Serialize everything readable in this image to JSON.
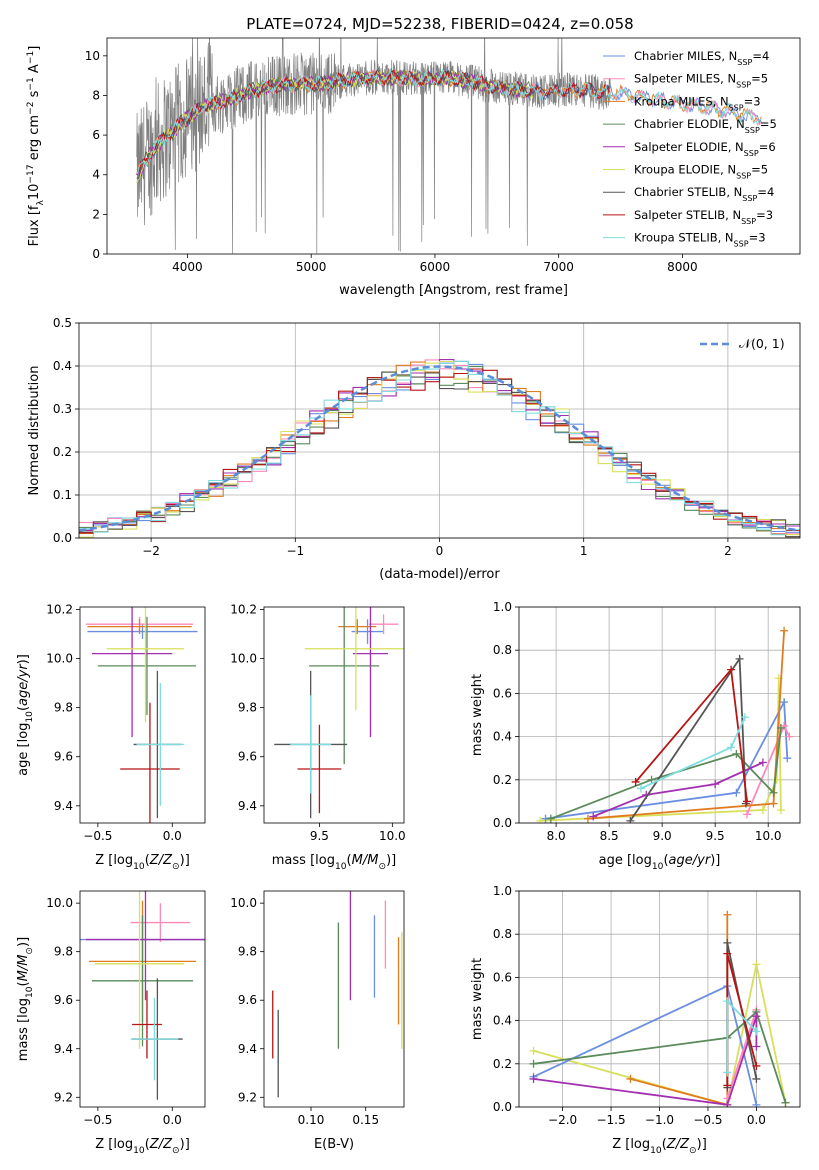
{
  "figure": {
    "title": "PLATE=0724, MJD=52238, FIBERID=0424, z=0.058"
  },
  "colors": {
    "Chabrier MILES": "#6a8fe0",
    "Salpeter MILES": "#ff88bb",
    "Kroupa MILES": "#e07b1f",
    "Chabrier ELODIE": "#5b8a5b",
    "Salpeter ELODIE": "#a22fb0",
    "Kroupa ELODIE": "#d8e05a",
    "Chabrier STELIB": "#555555",
    "Salpeter STELIB": "#b81414",
    "Kroupa STELIB": "#7fdde0",
    "data": "#808080",
    "normal": "#5b8ed6"
  },
  "chart_data": [
    {
      "id": "spectrum",
      "type": "line",
      "xlabel": "wavelength [Angstrom, rest frame]",
      "ylabel": "Flux [f_λ 10^-17 erg cm^-2 s^-1 A^-1]",
      "xlim": [
        3350,
        8950
      ],
      "ylim": [
        0,
        10.9
      ],
      "xticks": [
        4000,
        5000,
        6000,
        7000,
        8000
      ],
      "yticks": [
        0,
        2,
        4,
        6,
        8,
        10
      ],
      "grid": false,
      "legend_position": "top-right",
      "data_range": [
        3590,
        7420
      ],
      "model_range": [
        3590,
        8640
      ],
      "legend": [
        {
          "label": "Chabrier MILES, N",
          "sub": "SSP",
          "tail": "=4",
          "model": "Chabrier MILES"
        },
        {
          "label": "Salpeter MILES, N",
          "sub": "SSP",
          "tail": "=5",
          "model": "Salpeter MILES"
        },
        {
          "label": "Kroupa MILES, N",
          "sub": "SSP",
          "tail": "=3",
          "model": "Kroupa MILES"
        },
        {
          "label": "Chabrier ELODIE, N",
          "sub": "SSP",
          "tail": "=5",
          "model": "Chabrier ELODIE"
        },
        {
          "label": "Salpeter ELODIE, N",
          "sub": "SSP",
          "tail": "=6",
          "model": "Salpeter ELODIE"
        },
        {
          "label": "Kroupa ELODIE, N",
          "sub": "SSP",
          "tail": "=5",
          "model": "Kroupa ELODIE"
        },
        {
          "label": "Chabrier STELIB, N",
          "sub": "SSP",
          "tail": "=4",
          "model": "Chabrier STELIB"
        },
        {
          "label": "Salpeter STELIB, N",
          "sub": "SSP",
          "tail": "=3",
          "model": "Salpeter STELIB"
        },
        {
          "label": "Kroupa STELIB, N",
          "sub": "SSP",
          "tail": "=3",
          "model": "Kroupa STELIB"
        }
      ],
      "continuum": [
        [
          3590,
          3.9
        ],
        [
          3650,
          4.6
        ],
        [
          3720,
          5.2
        ],
        [
          3800,
          5.8
        ],
        [
          3900,
          6.3
        ],
        [
          4000,
          6.9
        ],
        [
          4150,
          7.5
        ],
        [
          4300,
          7.7
        ],
        [
          4500,
          8.2
        ],
        [
          4700,
          8.5
        ],
        [
          4900,
          8.6
        ],
        [
          5100,
          8.6
        ],
        [
          5300,
          8.8
        ],
        [
          5500,
          8.9
        ],
        [
          5700,
          8.9
        ],
        [
          5900,
          8.8
        ],
        [
          6100,
          8.9
        ],
        [
          6300,
          8.7
        ],
        [
          6500,
          8.4
        ],
        [
          6700,
          8.3
        ],
        [
          6900,
          8.2
        ],
        [
          7100,
          8.3
        ],
        [
          7300,
          8.2
        ],
        [
          7500,
          8.1
        ],
        [
          7700,
          7.9
        ],
        [
          7900,
          7.7
        ],
        [
          8100,
          7.5
        ],
        [
          8300,
          7.3
        ],
        [
          8500,
          7.0
        ],
        [
          8640,
          6.9
        ]
      ]
    },
    {
      "id": "residuals",
      "type": "line",
      "xlabel": "(data-model)/error",
      "ylabel": "Normed distribution",
      "xlim": [
        -2.5,
        2.5
      ],
      "ylim": [
        0,
        0.5
      ],
      "xticks": [
        -2,
        -1,
        0,
        1,
        2
      ],
      "yticks": [
        0.0,
        0.1,
        0.2,
        0.3,
        0.4,
        0.5
      ],
      "grid": true,
      "legend_position": "top-right",
      "legend_label": "𝒩(0, 1)",
      "bin_width": 0.1,
      "normal": {
        "mean": 0,
        "sigma": 1
      }
    },
    {
      "id": "age-Z",
      "type": "scatter",
      "xlabel": "Z [log10(Z/Z☉)]",
      "ylabel": "age [log10(age/yr)]",
      "xlim": [
        -0.62,
        0.22
      ],
      "ylim": [
        9.33,
        10.21
      ],
      "xticks": [
        -0.5,
        0.0
      ],
      "yticks": [
        9.4,
        9.6,
        9.8,
        10.0,
        10.2
      ],
      "grid": false,
      "points": [
        {
          "model": "Chabrier MILES",
          "x": -0.2,
          "xerr": 0.37,
          "y": 10.11,
          "yerr": 0.03
        },
        {
          "model": "Salpeter MILES",
          "x": -0.22,
          "xerr": 0.36,
          "y": 10.14,
          "yerr": 0.03
        },
        {
          "model": "Kroupa MILES",
          "x": -0.22,
          "xerr": 0.35,
          "y": 10.13,
          "yerr": 0.03
        },
        {
          "model": "Chabrier ELODIE",
          "x": -0.17,
          "xerr": 0.33,
          "y": 9.97,
          "yerr": 0.2
        },
        {
          "model": "Salpeter ELODIE",
          "x": -0.27,
          "xerr": 0.27,
          "y": 10.02,
          "yerr": 0.34
        },
        {
          "model": "Kroupa ELODIE",
          "x": -0.18,
          "xerr": 0.26,
          "y": 10.04,
          "yerr": 0.3
        },
        {
          "model": "Chabrier STELIB",
          "x": -0.1,
          "xerr": 0.16,
          "y": 9.65,
          "yerr": 0.3
        },
        {
          "model": "Salpeter STELIB",
          "x": -0.15,
          "xerr": 0.2,
          "y": 9.55,
          "yerr": 0.27
        },
        {
          "model": "Kroupa STELIB",
          "x": -0.08,
          "xerr": 0.16,
          "y": 9.65,
          "yerr": 0.25
        }
      ]
    },
    {
      "id": "age-mass",
      "type": "scatter",
      "xlabel": "mass [log10(M/M☉)]",
      "ylabel": "",
      "xlim": [
        9.12,
        10.08
      ],
      "ylim": [
        9.33,
        10.21
      ],
      "xticks": [
        9.5,
        10.0
      ],
      "yticks": [
        9.4,
        9.6,
        9.8,
        10.0,
        10.2
      ],
      "grid": false,
      "points": [
        {
          "model": "Chabrier MILES",
          "x": 9.83,
          "xerr": 0.11,
          "y": 10.11,
          "yerr": 0.05
        },
        {
          "model": "Salpeter MILES",
          "x": 9.94,
          "xerr": 0.1,
          "y": 10.14,
          "yerr": 0.04
        },
        {
          "model": "Kroupa MILES",
          "x": 9.76,
          "xerr": 0.13,
          "y": 10.13,
          "yerr": 0.03
        },
        {
          "model": "Chabrier ELODIE",
          "x": 9.67,
          "xerr": 0.24,
          "y": 9.97,
          "yerr": 0.4
        },
        {
          "model": "Salpeter ELODIE",
          "x": 9.85,
          "xerr": 0.12,
          "y": 10.02,
          "yerr": 0.34
        },
        {
          "model": "Kroupa ELODIE",
          "x": 9.75,
          "xerr": 0.35,
          "y": 10.04,
          "yerr": 0.25
        },
        {
          "model": "Chabrier STELIB",
          "x": 9.44,
          "xerr": 0.25,
          "y": 9.65,
          "yerr": 0.3
        },
        {
          "model": "Salpeter STELIB",
          "x": 9.5,
          "xerr": 0.15,
          "y": 9.55,
          "yerr": 0.18
        },
        {
          "model": "Kroupa STELIB",
          "x": 9.44,
          "xerr": 0.14,
          "y": 9.65,
          "yerr": 0.2
        }
      ]
    },
    {
      "id": "weight-age",
      "type": "line",
      "xlabel": "age [log10(age/yr)]",
      "ylabel": "mass weight",
      "xlim": [
        7.65,
        10.3
      ],
      "ylim": [
        0,
        1.0
      ],
      "xticks": [
        8.0,
        8.5,
        9.0,
        9.5,
        10.0
      ],
      "yticks": [
        0.0,
        0.2,
        0.4,
        0.6,
        0.8,
        1.0
      ],
      "grid": true,
      "series": [
        {
          "model": "Kroupa ELODIE",
          "x": [
            7.85,
            9.95,
            10.08,
            10.1,
            10.12
          ],
          "y": [
            0.01,
            0.06,
            0.2,
            0.67,
            0.06
          ]
        },
        {
          "model": "Chabrier MILES",
          "x": [
            7.9,
            9.7,
            10.15,
            10.18
          ],
          "y": [
            0.02,
            0.14,
            0.56,
            0.3
          ]
        },
        {
          "model": "Salpeter MILES",
          "x": [
            9.8,
            10.15,
            10.2
          ],
          "y": [
            0.04,
            0.45,
            0.4
          ]
        },
        {
          "model": "Kroupa MILES",
          "x": [
            8.3,
            10.05,
            10.15
          ],
          "y": [
            0.02,
            0.09,
            0.89
          ]
        },
        {
          "model": "Chabrier ELODIE",
          "x": [
            7.95,
            8.9,
            9.7,
            10.05,
            10.12
          ],
          "y": [
            0.02,
            0.2,
            0.32,
            0.14,
            0.44
          ]
        },
        {
          "model": "Salpeter ELODIE",
          "x": [
            8.35,
            8.85,
            9.5,
            9.95
          ],
          "y": [
            0.03,
            0.13,
            0.18,
            0.28
          ]
        },
        {
          "model": "Chabrier STELIB",
          "x": [
            8.7,
            9.73,
            9.79
          ],
          "y": [
            0.01,
            0.76,
            0.09
          ]
        },
        {
          "model": "Salpeter STELIB",
          "x": [
            8.75,
            9.65,
            9.8
          ],
          "y": [
            0.19,
            0.71,
            0.1
          ]
        },
        {
          "model": "Kroupa STELIB",
          "x": [
            8.8,
            9.65,
            9.78
          ],
          "y": [
            0.16,
            0.35,
            0.49
          ]
        }
      ]
    },
    {
      "id": "mass-Z",
      "type": "scatter",
      "xlabel": "Z [log10(Z/Z☉)]",
      "ylabel": "mass [log10(M/M☉)]",
      "xlim": [
        -0.62,
        0.22
      ],
      "ylim": [
        9.16,
        10.05
      ],
      "xticks": [
        -0.5,
        0.0
      ],
      "yticks": [
        9.2,
        9.4,
        9.6,
        9.8,
        10.0
      ],
      "grid": false,
      "points": [
        {
          "model": "Chabrier MILES",
          "x": -0.2,
          "xerr": 0.42,
          "y": 9.85,
          "yerr": 0.1
        },
        {
          "model": "Salpeter MILES",
          "x": -0.08,
          "xerr": 0.2,
          "y": 9.92,
          "yerr": 0.08
        },
        {
          "model": "Kroupa MILES",
          "x": -0.2,
          "xerr": 0.36,
          "y": 9.76,
          "yerr": 0.25
        },
        {
          "model": "Chabrier ELODIE",
          "x": -0.2,
          "xerr": 0.34,
          "y": 9.68,
          "yerr": 0.27
        },
        {
          "model": "Salpeter ELODIE",
          "x": -0.18,
          "xerr": 0.4,
          "y": 9.85,
          "yerr": 0.25
        },
        {
          "model": "Kroupa ELODIE",
          "x": -0.22,
          "xerr": 0.3,
          "y": 9.75,
          "yerr": 0.35
        },
        {
          "model": "Chabrier STELIB",
          "x": -0.1,
          "xerr": 0.17,
          "y": 9.44,
          "yerr": 0.25
        },
        {
          "model": "Salpeter STELIB",
          "x": -0.17,
          "xerr": 0.1,
          "y": 9.5,
          "yerr": 0.14
        },
        {
          "model": "Kroupa STELIB",
          "x": -0.12,
          "xerr": 0.16,
          "y": 9.44,
          "yerr": 0.17
        }
      ]
    },
    {
      "id": "mass-ebv",
      "type": "scatter",
      "xlabel": "E(B-V)",
      "ylabel": "",
      "xlim": [
        0.057,
        0.185
      ],
      "ylim": [
        9.16,
        10.05
      ],
      "xticks": [
        0.1,
        0.15
      ],
      "yticks": [
        9.2,
        9.4,
        9.6,
        9.8,
        10.0
      ],
      "grid": false,
      "points": [
        {
          "model": "Salpeter STELIB",
          "x": 0.065,
          "y": 9.5,
          "yerr": 0.14
        },
        {
          "model": "Kroupa STELIB",
          "x": 0.07,
          "y": 9.44,
          "yerr": 0.1
        },
        {
          "model": "Chabrier STELIB",
          "x": 0.07,
          "y": 9.38,
          "yerr": 0.18
        },
        {
          "model": "Chabrier ELODIE",
          "x": 0.125,
          "y": 9.66,
          "yerr": 0.26
        },
        {
          "model": "Salpeter ELODIE",
          "x": 0.136,
          "y": 9.83,
          "yerr": 0.23
        },
        {
          "model": "Chabrier MILES",
          "x": 0.158,
          "y": 9.78,
          "yerr": 0.17
        },
        {
          "model": "Salpeter MILES",
          "x": 0.168,
          "y": 9.87,
          "yerr": 0.14
        },
        {
          "model": "Kroupa MILES",
          "x": 0.18,
          "y": 9.68,
          "yerr": 0.18
        },
        {
          "model": "Kroupa ELODIE",
          "x": 0.183,
          "y": 9.64,
          "yerr": 0.24
        }
      ]
    },
    {
      "id": "weight-Z",
      "type": "line",
      "xlabel": "Z [log10(Z/Z☉)]",
      "ylabel": "mass weight",
      "xlim": [
        -2.45,
        0.45
      ],
      "ylim": [
        0,
        1.0
      ],
      "xticks": [
        -2.0,
        -1.5,
        -1.0,
        -0.5,
        0.0
      ],
      "yticks": [
        0.0,
        0.2,
        0.4,
        0.6,
        0.8,
        1.0
      ],
      "grid": true,
      "series": [
        {
          "model": "Kroupa ELODIE",
          "x": [
            -2.3,
            -0.3,
            0.0,
            0.3
          ],
          "y": [
            0.26,
            0.01,
            0.66,
            0.02
          ]
        },
        {
          "model": "Chabrier MILES",
          "x": [
            -2.3,
            -0.3,
            0.0
          ],
          "y": [
            0.14,
            0.56,
            0.01
          ]
        },
        {
          "model": "Kroupa MILES",
          "x": [
            -1.3,
            -0.3,
            -0.3
          ],
          "y": [
            0.13,
            0.01,
            0.89
          ]
        },
        {
          "model": "Salpeter MILES",
          "x": [
            -0.3,
            0.0,
            0.0
          ],
          "y": [
            0.04,
            0.45,
            0.4
          ]
        },
        {
          "model": "Chabrier ELODIE",
          "x": [
            -2.3,
            -0.3,
            0.0,
            0.3
          ],
          "y": [
            0.2,
            0.32,
            0.44,
            0.02
          ]
        },
        {
          "model": "Salpeter ELODIE",
          "x": [
            -2.3,
            -0.3,
            0.0,
            0.0
          ],
          "y": [
            0.13,
            0.01,
            0.42,
            0.28
          ]
        },
        {
          "model": "Chabrier STELIB",
          "x": [
            -0.3,
            -0.3,
            0.0
          ],
          "y": [
            0.09,
            0.76,
            0.13
          ]
        },
        {
          "model": "Salpeter STELIB",
          "x": [
            -0.3,
            -0.3,
            0.0
          ],
          "y": [
            0.1,
            0.71,
            0.19
          ]
        },
        {
          "model": "Kroupa STELIB",
          "x": [
            -0.3,
            -0.3,
            0.0
          ],
          "y": [
            0.16,
            0.49,
            0.35
          ]
        }
      ]
    }
  ]
}
